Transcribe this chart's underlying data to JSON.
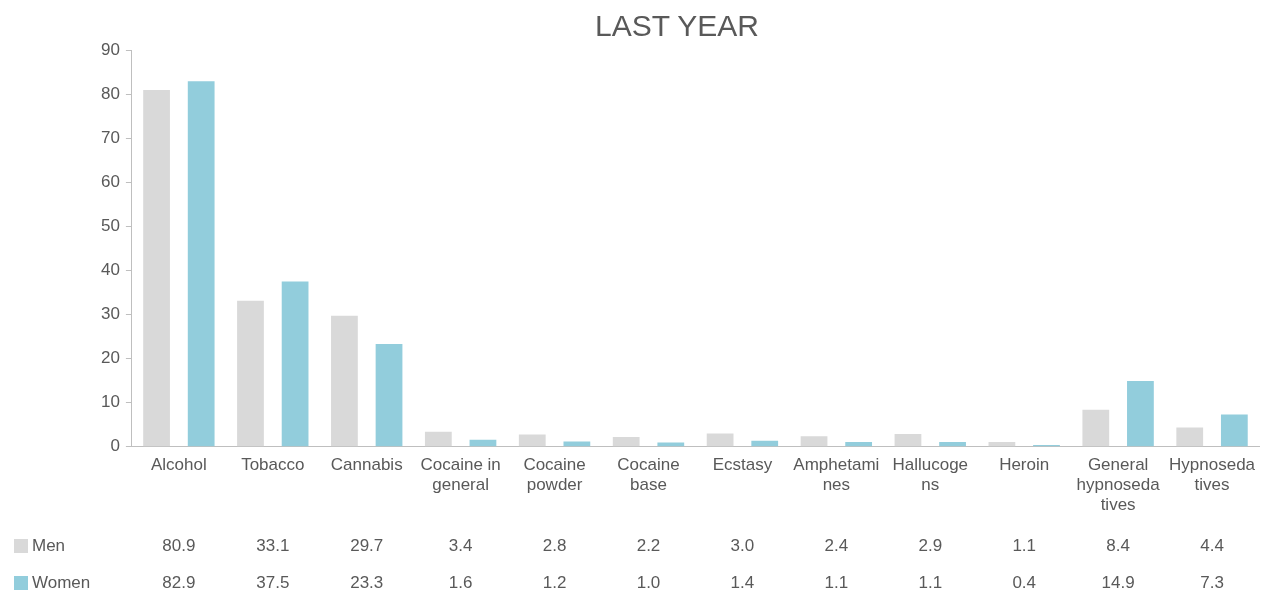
{
  "chart_data": {
    "type": "bar",
    "title": "LAST YEAR",
    "categories": [
      "Alcohol",
      "Tobacco",
      "Cannabis",
      "Cocaine in general",
      "Cocaine powder",
      "Cocaine base",
      "Ecstasy",
      "Amphetamines",
      "Hallucogens",
      "Heroin",
      "General hypnosedatives",
      "Hypnosedatives"
    ],
    "series": [
      {
        "name": "Men",
        "color": "#d9d9d9",
        "values": [
          80.9,
          33.1,
          29.7,
          3.4,
          2.8,
          2.2,
          3.0,
          2.4,
          2.9,
          1.1,
          8.4,
          4.4
        ],
        "value_labels": [
          "80.9",
          "33.1",
          "29.7",
          "3.4",
          "2.8",
          "2.2",
          "3.0",
          "2.4",
          "2.9",
          "1.1",
          "8.4",
          "4.4"
        ]
      },
      {
        "name": "Women",
        "color": "#92cddc",
        "values": [
          82.9,
          37.5,
          23.3,
          1.6,
          1.2,
          1.0,
          1.4,
          1.1,
          1.1,
          0.4,
          14.9,
          7.3
        ],
        "value_labels": [
          "82.9",
          "37.5",
          "23.3",
          "1.6",
          "1.2",
          "1.0",
          "1.4",
          "1.1",
          "1.1",
          "0.4",
          "14.9",
          "7.3"
        ]
      }
    ],
    "ylim": [
      0,
      90
    ],
    "yticks": [
      0,
      10,
      20,
      30,
      40,
      50,
      60,
      70,
      80,
      90
    ],
    "grid": false,
    "legend": "bottom"
  }
}
